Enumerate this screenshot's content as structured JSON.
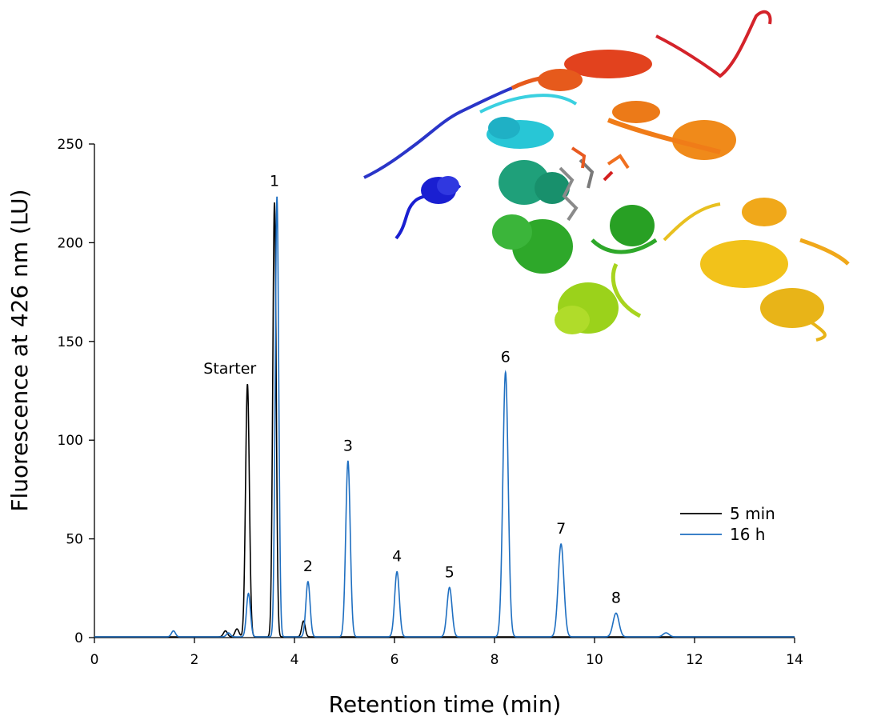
{
  "chart_data": {
    "type": "line",
    "title": "",
    "xlabel": "Retention time (min)",
    "ylabel": "Fluorescence at 426 nm (LU)",
    "xlim": [
      0,
      14
    ],
    "ylim": [
      0,
      250
    ],
    "xticks": [
      "0",
      "2",
      "4",
      "6",
      "8",
      "10",
      "12",
      "14"
    ],
    "yticks": [
      "0",
      "50",
      "100",
      "150",
      "200",
      "250"
    ],
    "grid": false,
    "legend_position": "center-right",
    "series": [
      {
        "name": "5 min",
        "color": "#000000",
        "peaks": [
          {
            "x": 2.62,
            "y": 3,
            "w": 0.04
          },
          {
            "x": 2.85,
            "y": 4,
            "w": 0.04
          },
          {
            "x": 3.06,
            "y": 128,
            "w": 0.038
          },
          {
            "x": 3.6,
            "y": 220,
            "w": 0.034
          },
          {
            "x": 4.18,
            "y": 8,
            "w": 0.035
          }
        ]
      },
      {
        "name": "16 h",
        "color": "#1f6fc1",
        "peaks": [
          {
            "x": 1.58,
            "y": 3,
            "w": 0.04
          },
          {
            "x": 2.68,
            "y": 2,
            "w": 0.04
          },
          {
            "x": 3.08,
            "y": 22,
            "w": 0.04
          },
          {
            "x": 3.65,
            "y": 223,
            "w": 0.035
          },
          {
            "x": 4.27,
            "y": 28,
            "w": 0.042
          },
          {
            "x": 5.07,
            "y": 89,
            "w": 0.045
          },
          {
            "x": 6.05,
            "y": 33,
            "w": 0.047
          },
          {
            "x": 7.1,
            "y": 25,
            "w": 0.05
          },
          {
            "x": 8.22,
            "y": 134,
            "w": 0.053
          },
          {
            "x": 9.33,
            "y": 47,
            "w": 0.057
          },
          {
            "x": 10.43,
            "y": 12,
            "w": 0.06
          },
          {
            "x": 11.43,
            "y": 2,
            "w": 0.06
          }
        ]
      }
    ],
    "annotations": [
      {
        "text": "Starter",
        "x": 3.06,
        "y": 128
      },
      {
        "text": "1",
        "x": 3.6,
        "y": 223
      },
      {
        "text": "2",
        "x": 4.27,
        "y": 28
      },
      {
        "text": "3",
        "x": 5.07,
        "y": 89
      },
      {
        "text": "4",
        "x": 6.05,
        "y": 33
      },
      {
        "text": "5",
        "x": 7.1,
        "y": 25
      },
      {
        "text": "6",
        "x": 8.22,
        "y": 134
      },
      {
        "text": "7",
        "x": 9.33,
        "y": 47
      },
      {
        "text": "8",
        "x": 10.43,
        "y": 12
      }
    ]
  },
  "inset": {
    "depicts": "protein-ribbon-structure-with-ligand",
    "colors": [
      "#1a1fd1",
      "#28c6d6",
      "#1fa07a",
      "#2ea82a",
      "#9bd21b",
      "#f2c21a",
      "#f08a1a",
      "#e2421e",
      "#d4232a"
    ]
  }
}
